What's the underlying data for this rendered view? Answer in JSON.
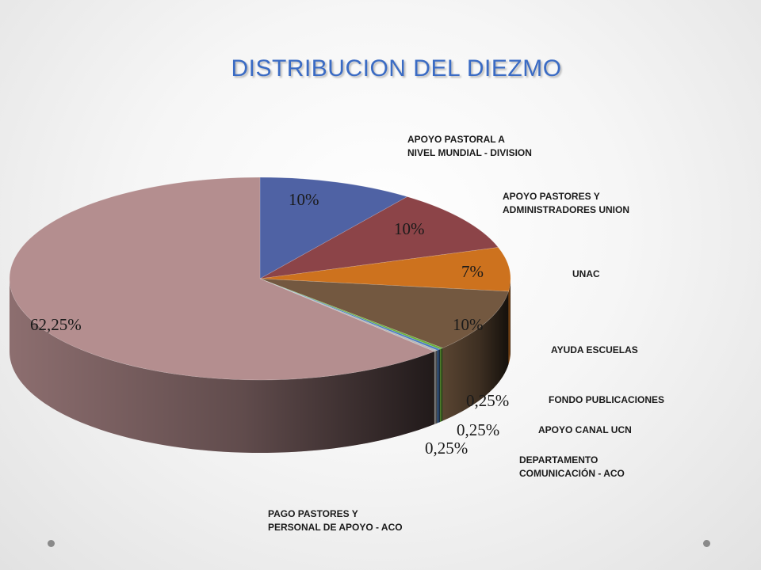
{
  "slide": {
    "title": "DISTRIBUCION DEL DIEZMO"
  },
  "chart_data": {
    "type": "pie",
    "title": "DISTRIBUCION DEL DIEZMO",
    "style": "3d",
    "categories": [
      "APOYO PASTORAL A NIVEL MUNDIAL - DIVISION",
      "APOYO PASTORES Y ADMINISTRADORES UNION",
      "UNAC",
      "AYUDA ESCUELAS",
      "FONDO PUBLICACIONES",
      "APOYO CANAL UCN",
      "DEPARTAMENTO COMUNICACIÓN - ACO",
      "PAGO PASTORES Y PERSONAL DE APOYO - ACO"
    ],
    "values": [
      10,
      10,
      7,
      10,
      0.25,
      0.25,
      0.25,
      62.25
    ],
    "value_labels": [
      "10%",
      "10%",
      "7%",
      "10%",
      "0,25%",
      "0,25%",
      "0,25%",
      "62,25%"
    ],
    "colors": [
      "#4f62a4",
      "#8c4448",
      "#cd721e",
      "#735840",
      "#6bb03a",
      "#4a7cc0",
      "#b8b8b8",
      "#b48e8f"
    ],
    "legend_labels": [
      [
        "APOYO PASTORAL A",
        "NIVEL MUNDIAL - DIVISION"
      ],
      [
        "APOYO PASTORES Y",
        "ADMINISTRADORES UNION"
      ],
      [
        "UNAC"
      ],
      [
        "AYUDA ESCUELAS"
      ],
      [
        "FONDO PUBLICACIONES"
      ],
      [
        "APOYO CANAL UCN"
      ],
      [
        "DEPARTAMENTO",
        "COMUNICACIÓN - ACO"
      ],
      [
        "PAGO PASTORES Y",
        "PERSONAL DE APOYO - ACO"
      ]
    ],
    "legend_placement": "right"
  }
}
